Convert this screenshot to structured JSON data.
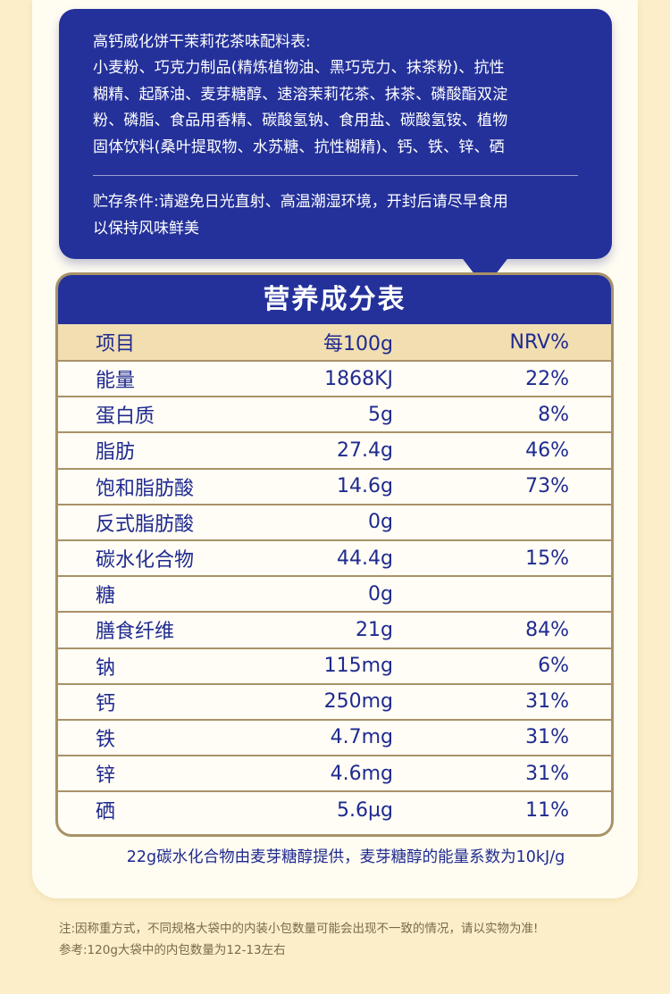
{
  "ingredients": {
    "title": "高钙威化饼干茉莉花茶味配料表:",
    "lines": [
      "小麦粉、巧克力制品(精炼植物油、黑巧克力、抹茶粉)、抗性",
      "糊精、起酥油、麦芽糖醇、速溶茉莉花茶、抹茶、磷酸酯双淀",
      "粉、磷脂、食品用香精、碳酸氢钠、食用盐、碳酸氢铵、植物",
      "固体饮料(桑叶提取物、水苏糖、抗性糊精)、钙、铁、锌、硒"
    ],
    "storage_lines": [
      "贮存条件:请避免日光直射、高温潮湿环境，开封后请尽早食用",
      "以保持风味鲜美"
    ]
  },
  "nutrition": {
    "title": "营养成分表",
    "headers": [
      "项目",
      "每100g",
      "NRV%"
    ],
    "rows": [
      {
        "item": "能量",
        "per100g": "1868KJ",
        "nrv": "22%"
      },
      {
        "item": "蛋白质",
        "per100g": "5g",
        "nrv": "8%"
      },
      {
        "item": "脂肪",
        "per100g": "27.4g",
        "nrv": "46%"
      },
      {
        "item": "饱和脂肪酸",
        "per100g": "14.6g",
        "nrv": "73%"
      },
      {
        "item": "反式脂肪酸",
        "per100g": "0g",
        "nrv": ""
      },
      {
        "item": "碳水化合物",
        "per100g": "44.4g",
        "nrv": "15%"
      },
      {
        "item": "糖",
        "per100g": "0g",
        "nrv": ""
      },
      {
        "item": "膳食纤维",
        "per100g": "21g",
        "nrv": "84%"
      },
      {
        "item": "钠",
        "per100g": "115mg",
        "nrv": "6%"
      },
      {
        "item": "钙",
        "per100g": "250mg",
        "nrv": "31%"
      },
      {
        "item": "铁",
        "per100g": "4.7mg",
        "nrv": "31%"
      },
      {
        "item": "锌",
        "per100g": "4.6mg",
        "nrv": "31%"
      },
      {
        "item": "硒",
        "per100g": "5.6µg",
        "nrv": "11%"
      }
    ],
    "footnote": "22g碳水化合物由麦芽糖醇提供，麦芽糖醇的能量系数为10kJ/g"
  },
  "notes": [
    "注:因称重方式，不同规格大袋中的内装小包数量可能会出现不一致的情况，请以实物为准!",
    "参考:120g大袋中的内包数量为12-13左右"
  ],
  "colors": {
    "brand_blue": "#24319a",
    "text_blue": "#1f2a8f",
    "gold_border": "#a89267",
    "header_tan": "#f1deb1",
    "background_cream": "#fbeec8"
  }
}
